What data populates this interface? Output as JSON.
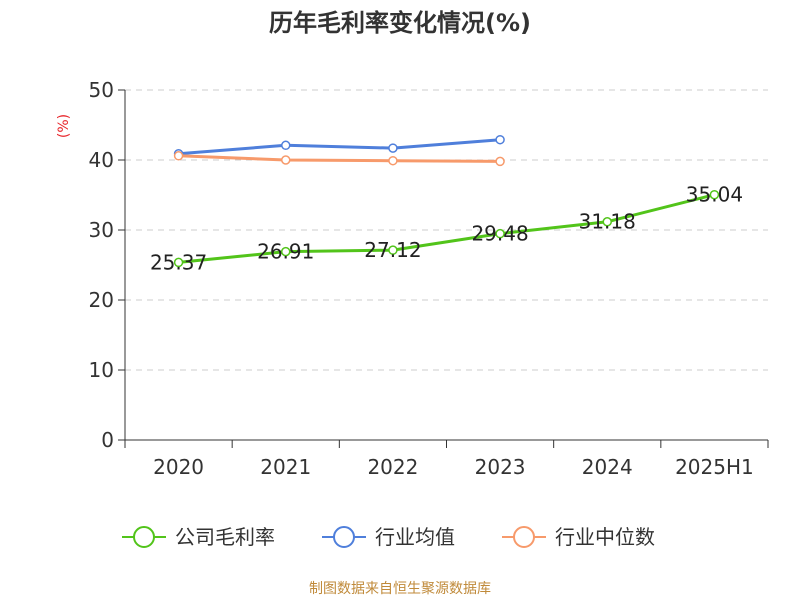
{
  "chart_data": {
    "type": "line",
    "title": "历年毛利率变化情况(%)",
    "ylabel": "(%)",
    "categories": [
      "2020",
      "2021",
      "2022",
      "2023",
      "2024",
      "2025H1"
    ],
    "yticks": [
      "0",
      "10",
      "20",
      "30",
      "40",
      "50"
    ],
    "ylim": [
      0,
      50
    ],
    "grid": true,
    "legend_position": "bottom",
    "series": [
      {
        "name": "公司毛利率",
        "color": "#52c41a",
        "values": [
          25.37,
          26.91,
          27.12,
          29.48,
          31.18,
          35.04
        ],
        "labels": [
          "25.37",
          "26.91",
          "27.12",
          "29.48",
          "31.18",
          "35.04"
        ]
      },
      {
        "name": "行业均值",
        "color": "#4f7fdb",
        "values": [
          40.9,
          42.1,
          41.7,
          42.9,
          null,
          null
        ]
      },
      {
        "name": "行业中位数",
        "color": "#f79a6b",
        "values": [
          40.6,
          40.0,
          39.9,
          39.8,
          null,
          null
        ]
      }
    ]
  },
  "source_text": "制图数据来自恒生聚源数据库"
}
